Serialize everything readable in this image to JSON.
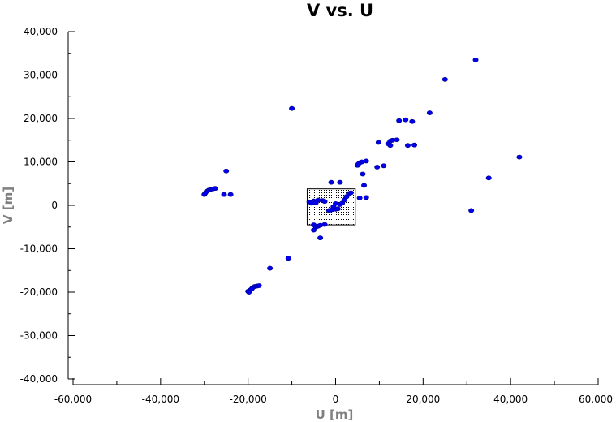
{
  "chart_data": {
    "type": "scatter",
    "title": "V vs. U",
    "xlabel": "U [m]",
    "ylabel": "V [m]",
    "xlim": [
      -60000,
      60000
    ],
    "ylim": [
      -40000,
      40000
    ],
    "x_ticks": [
      "-60,000",
      "-40,000",
      "-20,000",
      "0",
      "20,000",
      "40,000",
      "60,000"
    ],
    "y_ticks": [
      "40,000",
      "30,000",
      "20,000",
      "10,000",
      "0",
      "-10,000",
      "-20,000",
      "-30,000",
      "-40,000"
    ],
    "grid": false,
    "marker_color": "#0000ee",
    "selection_box": {
      "x": [
        -6500,
        4500
      ],
      "y": [
        -4500,
        3800
      ],
      "fill": "stippled"
    },
    "series": [
      {
        "points": [
          [
            32000,
            33500
          ],
          [
            25000,
            29000
          ],
          [
            21500,
            21300
          ],
          [
            -10000,
            22300
          ],
          [
            14500,
            19500
          ],
          [
            16000,
            19700
          ],
          [
            17500,
            19300
          ],
          [
            9800,
            14500
          ],
          [
            12000,
            14200
          ],
          [
            12500,
            14800
          ],
          [
            13000,
            15000
          ],
          [
            14000,
            15100
          ],
          [
            12500,
            13800
          ],
          [
            16500,
            13800
          ],
          [
            18000,
            13900
          ],
          [
            42000,
            11100
          ],
          [
            35000,
            6300
          ],
          [
            31000,
            -1200
          ],
          [
            5000,
            9200
          ],
          [
            5500,
            9800
          ],
          [
            6000,
            10000
          ],
          [
            7000,
            10200
          ],
          [
            5200,
            9500
          ],
          [
            9500,
            8800
          ],
          [
            11000,
            9100
          ],
          [
            6200,
            7200
          ],
          [
            -25000,
            7900
          ],
          [
            -25500,
            2500
          ],
          [
            -24000,
            2500
          ],
          [
            -30000,
            2500
          ],
          [
            -29500,
            3200
          ],
          [
            -29000,
            3500
          ],
          [
            -28500,
            3700
          ],
          [
            -28000,
            3800
          ],
          [
            -27500,
            3900
          ],
          [
            -29800,
            2800
          ],
          [
            -1000,
            5300
          ],
          [
            1000,
            5300
          ],
          [
            6500,
            4600
          ],
          [
            5500,
            1700
          ],
          [
            7000,
            1800
          ],
          [
            -6000,
            800
          ],
          [
            -5000,
            1000
          ],
          [
            -4000,
            1200
          ],
          [
            -3000,
            1100
          ],
          [
            -2500,
            900
          ],
          [
            -5500,
            500
          ],
          [
            -4500,
            600
          ],
          [
            -1500,
            -1200
          ],
          [
            -800,
            -1000
          ],
          [
            0,
            -900
          ],
          [
            500,
            -800
          ],
          [
            1000,
            200
          ],
          [
            1500,
            500
          ],
          [
            2000,
            1200
          ],
          [
            2500,
            2000
          ],
          [
            3000,
            2700
          ],
          [
            3500,
            2900
          ],
          [
            0,
            400
          ],
          [
            -500,
            -300
          ],
          [
            -5000,
            -4500
          ],
          [
            -4500,
            -5000
          ],
          [
            -4000,
            -4800
          ],
          [
            -3500,
            -4600
          ],
          [
            -5000,
            -5700
          ],
          [
            -2500,
            -4400
          ],
          [
            -3500,
            -7500
          ],
          [
            -10800,
            -12200
          ],
          [
            -15000,
            -14500
          ],
          [
            -20000,
            -19800
          ],
          [
            -19500,
            -19500
          ],
          [
            -19000,
            -19000
          ],
          [
            -18500,
            -18700
          ],
          [
            -18000,
            -18600
          ],
          [
            -17500,
            -18500
          ],
          [
            -19800,
            -20000
          ],
          [
            -19200,
            -19300
          ]
        ]
      }
    ]
  }
}
